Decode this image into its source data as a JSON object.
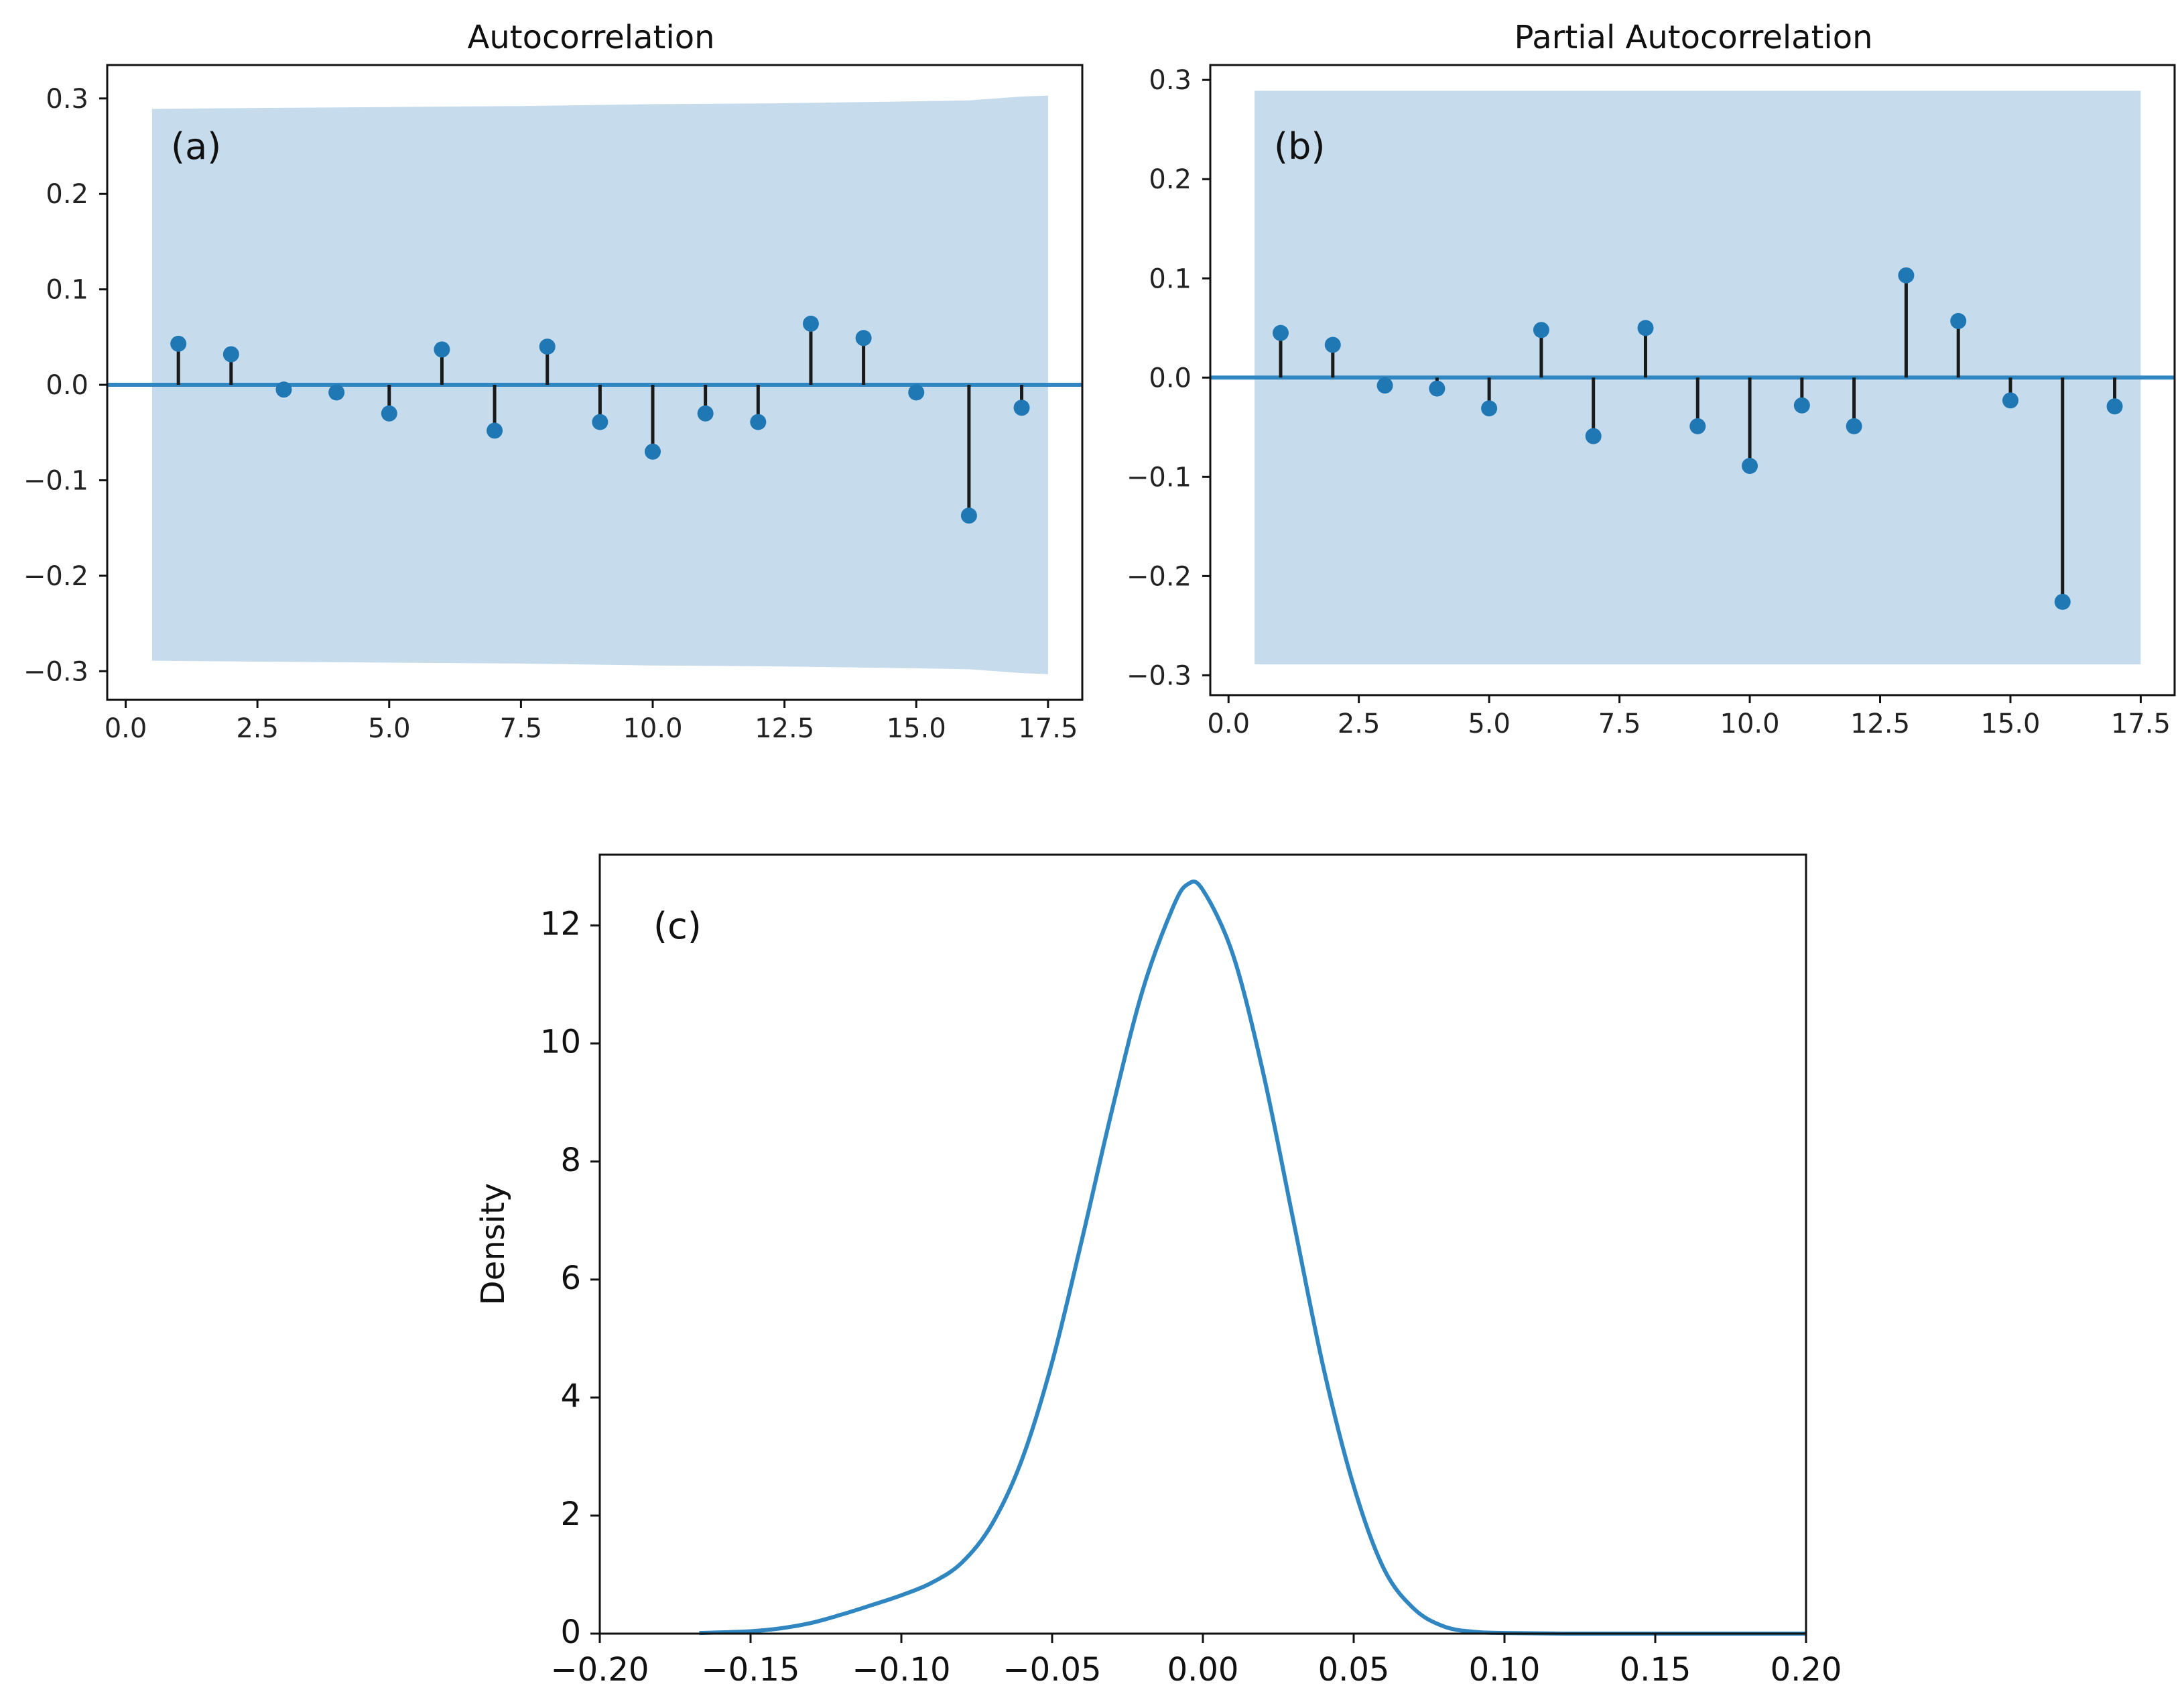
{
  "chart_data": [
    {
      "type": "stem",
      "title": "Autocorrelation",
      "panel_label": "(a)",
      "xlabel": "",
      "ylabel": "",
      "xlim": [
        -0.35,
        18.15
      ],
      "ylim": [
        -0.33,
        0.335
      ],
      "xticks": [
        0.0,
        2.5,
        5.0,
        7.5,
        10.0,
        12.5,
        15.0,
        17.5
      ],
      "xtick_labels": [
        "0.0",
        "2.5",
        "5.0",
        "7.5",
        "10.0",
        "12.5",
        "15.0",
        "17.5"
      ],
      "yticks": [
        0.3,
        0.2,
        0.1,
        0.0,
        -0.1,
        -0.2,
        -0.3
      ],
      "ytick_labels": [
        "0.3",
        "0.2",
        "0.1",
        "0.0",
        "−0.1",
        "−0.2",
        "−0.3"
      ],
      "lags": [
        1,
        2,
        3,
        4,
        5,
        6,
        7,
        8,
        9,
        10,
        11,
        12,
        13,
        14,
        15,
        16,
        17
      ],
      "values": [
        0.043,
        0.032,
        -0.005,
        -0.008,
        -0.03,
        0.037,
        -0.048,
        0.04,
        -0.039,
        -0.07,
        -0.03,
        -0.039,
        0.064,
        0.049,
        -0.008,
        -0.137,
        -0.024
      ],
      "confidence_band": {
        "x": [
          0.5,
          2.5,
          5,
          7.5,
          10,
          12.5,
          15,
          16,
          17,
          17.5
        ],
        "upper": [
          0.289,
          0.29,
          0.291,
          0.292,
          0.294,
          0.295,
          0.297,
          0.298,
          0.302,
          0.303
        ],
        "lower": [
          -0.289,
          -0.29,
          -0.291,
          -0.292,
          -0.294,
          -0.295,
          -0.297,
          -0.298,
          -0.302,
          -0.303
        ]
      },
      "grid": false
    },
    {
      "type": "stem",
      "title": "Partial Autocorrelation",
      "panel_label": "(b)",
      "xlabel": "",
      "ylabel": "",
      "xlim": [
        -0.35,
        18.15
      ],
      "ylim": [
        -0.32,
        0.315
      ],
      "xticks": [
        0.0,
        2.5,
        5.0,
        7.5,
        10.0,
        12.5,
        15.0,
        17.5
      ],
      "xtick_labels": [
        "0.0",
        "2.5",
        "5.0",
        "7.5",
        "10.0",
        "12.5",
        "15.0",
        "17.5"
      ],
      "yticks": [
        0.3,
        0.2,
        0.1,
        0.0,
        -0.1,
        -0.2,
        -0.3
      ],
      "ytick_labels": [
        "0.3",
        "0.2",
        "0.1",
        "0.0",
        "−0.1",
        "−0.2",
        "−0.3"
      ],
      "lags": [
        1,
        2,
        3,
        4,
        5,
        6,
        7,
        8,
        9,
        10,
        11,
        12,
        13,
        14,
        15,
        16,
        17
      ],
      "values": [
        0.045,
        0.033,
        -0.008,
        -0.011,
        -0.031,
        0.048,
        -0.059,
        0.05,
        -0.049,
        -0.089,
        -0.028,
        -0.049,
        0.103,
        0.057,
        -0.023,
        -0.226,
        -0.029
      ],
      "confidence_band": {
        "x": [
          0.5,
          17.5
        ],
        "upper": [
          0.289,
          0.289
        ],
        "lower": [
          -0.289,
          -0.289
        ]
      },
      "grid": false
    },
    {
      "type": "line",
      "title": "",
      "panel_label": "(c)",
      "xlabel": "",
      "ylabel": "Density",
      "xlim": [
        -0.2,
        0.2
      ],
      "ylim": [
        0,
        13.2
      ],
      "xticks": [
        -0.2,
        -0.15,
        -0.1,
        -0.05,
        0.0,
        0.05,
        0.1,
        0.15,
        0.2
      ],
      "xtick_labels": [
        "−0.20",
        "−0.15",
        "−0.10",
        "−0.05",
        "0.00",
        "0.05",
        "0.10",
        "0.15",
        "0.20"
      ],
      "yticks": [
        0,
        2,
        4,
        6,
        8,
        10,
        12
      ],
      "ytick_labels": [
        "0",
        "2",
        "4",
        "6",
        "8",
        "10",
        "12"
      ],
      "x": [
        -0.167,
        -0.15,
        -0.14,
        -0.13,
        -0.12,
        -0.11,
        -0.1,
        -0.09,
        -0.08,
        -0.07,
        -0.06,
        -0.05,
        -0.04,
        -0.03,
        -0.02,
        -0.01,
        -0.005,
        0.0,
        0.01,
        0.02,
        0.03,
        0.04,
        0.05,
        0.06,
        0.07,
        0.08,
        0.09,
        0.1,
        0.12,
        0.15,
        0.2
      ],
      "y": [
        0.01,
        0.04,
        0.09,
        0.18,
        0.32,
        0.48,
        0.65,
        0.86,
        1.2,
        1.85,
        2.95,
        4.6,
        6.7,
        8.9,
        10.9,
        12.3,
        12.7,
        12.6,
        11.5,
        9.5,
        7.0,
        4.5,
        2.5,
        1.1,
        0.42,
        0.12,
        0.03,
        0.01,
        0.0,
        0.0,
        0.0
      ],
      "grid": false
    }
  ],
  "colors": {
    "stem": "#1a1a1a",
    "marker": "#1f77b4",
    "band": "#c6dcec",
    "baseline": "#2f86c0",
    "kde_line": "#2f86c0"
  }
}
